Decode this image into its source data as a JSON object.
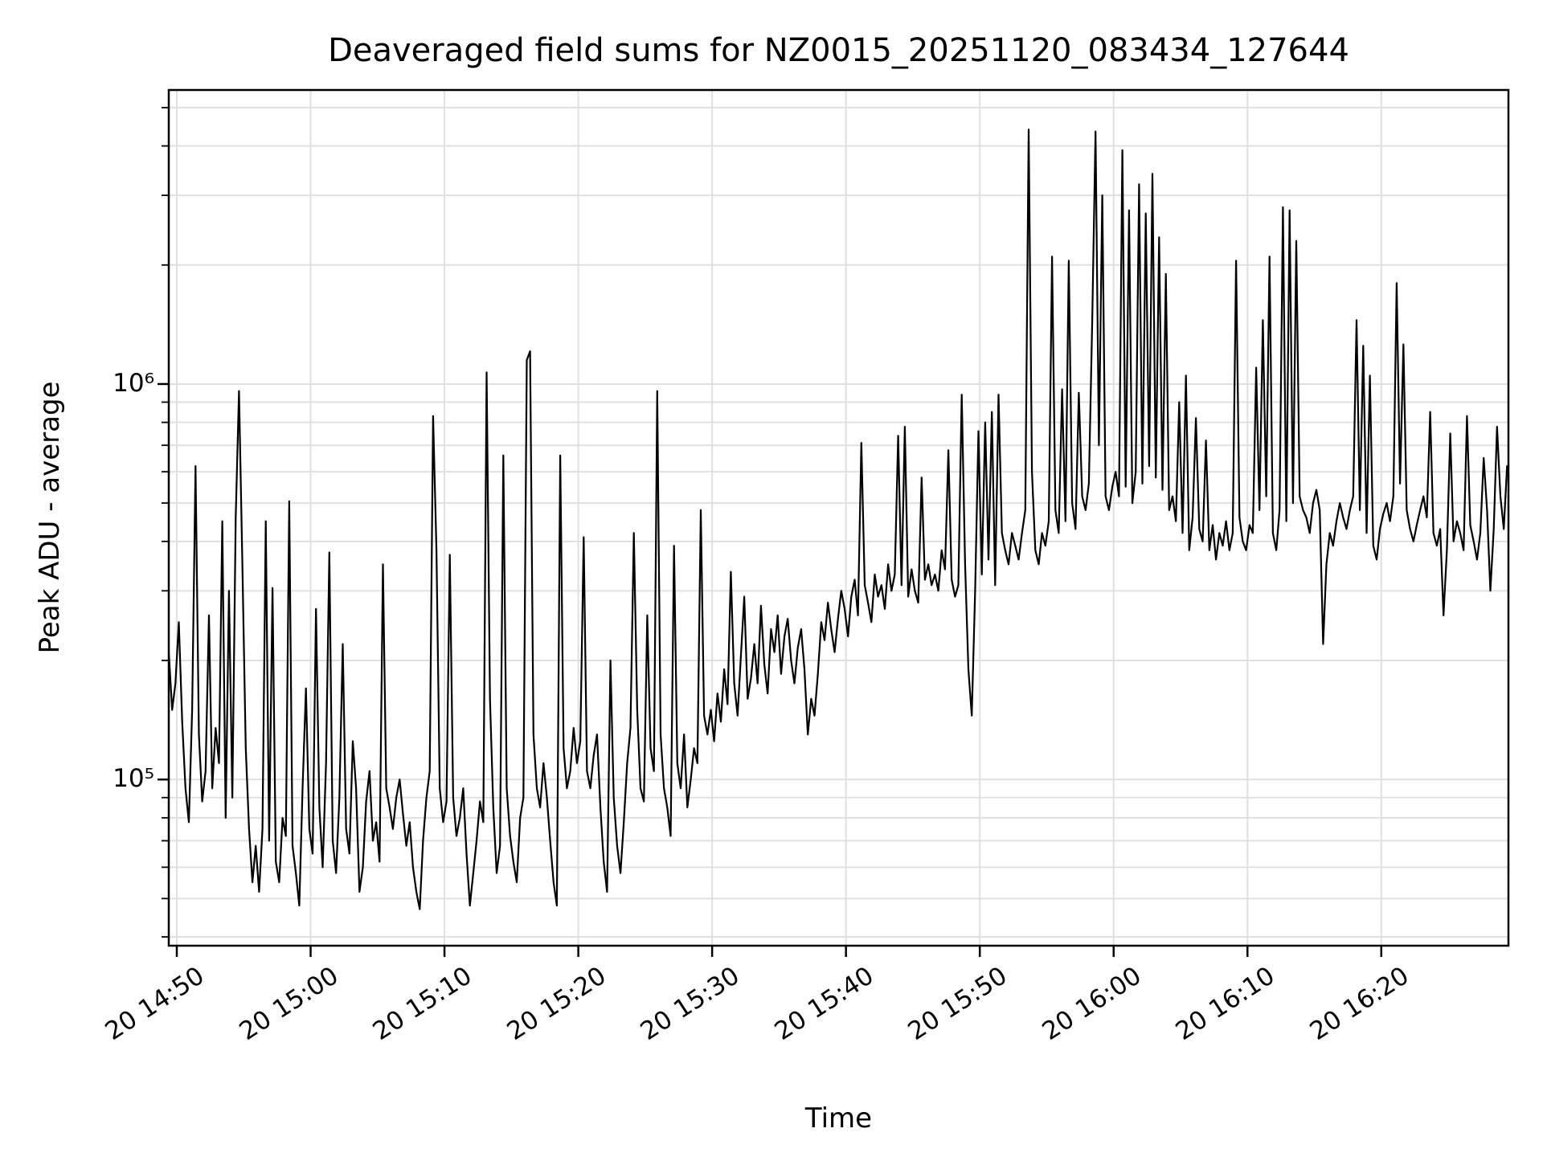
{
  "chart_data": {
    "type": "line",
    "title": "Deaveraged field sums for NZ0015_20251120_083434_127644",
    "xlabel": "Time",
    "ylabel": "Peak ADU - average",
    "yscale": "log",
    "ylim": [
      38000,
      5540000
    ],
    "grid": true,
    "legend": false,
    "x_axis": {
      "unit": "minutes after 2025-11-20 14:49",
      "range": [
        0.4,
        100.5
      ],
      "major_ticks": [
        {
          "t": 1,
          "label": "20 14:50"
        },
        {
          "t": 11,
          "label": "20 15:00"
        },
        {
          "t": 21,
          "label": "20 15:10"
        },
        {
          "t": 31,
          "label": "20 15:20"
        },
        {
          "t": 41,
          "label": "20 15:30"
        },
        {
          "t": 51,
          "label": "20 15:40"
        },
        {
          "t": 61,
          "label": "20 15:50"
        },
        {
          "t": 71,
          "label": "20 16:00"
        },
        {
          "t": 81,
          "label": "20 16:10"
        },
        {
          "t": 91,
          "label": "20 16:20"
        }
      ]
    },
    "y_major_ticks": [
      {
        "value": 100000,
        "label": "10⁵"
      },
      {
        "value": 1000000,
        "label": "10⁶"
      }
    ],
    "series": [
      {
        "name": "Peak ADU - average",
        "color": "#000000",
        "t_start_min": 0.4,
        "t_step_min": 0.25,
        "values": [
          210000,
          150000,
          175000,
          250000,
          140000,
          95000,
          78000,
          150000,
          620000,
          130000,
          88000,
          105000,
          260000,
          95000,
          135000,
          110000,
          450000,
          80000,
          300000,
          90000,
          460000,
          960000,
          350000,
          120000,
          75000,
          55000,
          68000,
          52000,
          75000,
          450000,
          70000,
          305000,
          62000,
          55000,
          80000,
          72000,
          505000,
          68000,
          58000,
          48000,
          95000,
          170000,
          75000,
          65000,
          270000,
          85000,
          60000,
          110000,
          375000,
          70000,
          58000,
          90000,
          220000,
          75000,
          65000,
          125000,
          95000,
          52000,
          60000,
          88000,
          105000,
          70000,
          78000,
          62000,
          350000,
          95000,
          85000,
          75000,
          90000,
          100000,
          82000,
          68000,
          78000,
          60000,
          52000,
          47000,
          70000,
          90000,
          105000,
          830000,
          380000,
          95000,
          78000,
          88000,
          370000,
          90000,
          72000,
          80000,
          95000,
          65000,
          48000,
          58000,
          70000,
          88000,
          78000,
          1070000,
          160000,
          85000,
          58000,
          68000,
          660000,
          95000,
          72000,
          62000,
          55000,
          80000,
          90000,
          1150000,
          1210000,
          130000,
          95000,
          85000,
          110000,
          90000,
          70000,
          55000,
          48000,
          660000,
          120000,
          95000,
          105000,
          135000,
          110000,
          125000,
          410000,
          105000,
          95000,
          115000,
          130000,
          85000,
          62000,
          52000,
          200000,
          90000,
          68000,
          58000,
          78000,
          110000,
          135000,
          420000,
          150000,
          95000,
          88000,
          260000,
          120000,
          105000,
          960000,
          130000,
          95000,
          85000,
          72000,
          390000,
          110000,
          95000,
          130000,
          85000,
          100000,
          120000,
          110000,
          480000,
          145000,
          130000,
          150000,
          125000,
          165000,
          140000,
          190000,
          155000,
          335000,
          175000,
          145000,
          205000,
          290000,
          160000,
          180000,
          220000,
          175000,
          275000,
          195000,
          165000,
          240000,
          210000,
          260000,
          185000,
          230000,
          255000,
          200000,
          175000,
          215000,
          240000,
          190000,
          130000,
          160000,
          145000,
          185000,
          250000,
          225000,
          280000,
          240000,
          210000,
          255000,
          300000,
          270000,
          230000,
          290000,
          320000,
          260000,
          710000,
          310000,
          280000,
          250000,
          330000,
          290000,
          310000,
          270000,
          350000,
          300000,
          330000,
          740000,
          310000,
          780000,
          290000,
          340000,
          300000,
          280000,
          580000,
          320000,
          350000,
          310000,
          330000,
          300000,
          380000,
          340000,
          680000,
          320000,
          290000,
          310000,
          940000,
          350000,
          190000,
          145000,
          300000,
          760000,
          330000,
          800000,
          360000,
          850000,
          310000,
          940000,
          420000,
          380000,
          350000,
          420000,
          390000,
          360000,
          420000,
          480000,
          4400000,
          600000,
          380000,
          350000,
          420000,
          390000,
          450000,
          2100000,
          480000,
          420000,
          970000,
          450000,
          2050000,
          500000,
          430000,
          950000,
          520000,
          480000,
          560000,
          1450000,
          4350000,
          700000,
          3000000,
          520000,
          480000,
          550000,
          600000,
          520000,
          3900000,
          550000,
          2750000,
          500000,
          600000,
          3200000,
          560000,
          2700000,
          620000,
          3400000,
          580000,
          2350000,
          540000,
          1900000,
          480000,
          520000,
          450000,
          900000,
          420000,
          1050000,
          380000,
          460000,
          820000,
          430000,
          400000,
          720000,
          380000,
          440000,
          360000,
          420000,
          390000,
          450000,
          380000,
          420000,
          2050000,
          460000,
          400000,
          380000,
          440000,
          420000,
          1100000,
          480000,
          1450000,
          520000,
          2100000,
          420000,
          380000,
          480000,
          2800000,
          450000,
          2750000,
          500000,
          2300000,
          520000,
          480000,
          460000,
          420000,
          500000,
          540000,
          480000,
          220000,
          350000,
          420000,
          390000,
          450000,
          500000,
          460000,
          430000,
          480000,
          520000,
          1450000,
          480000,
          1250000,
          420000,
          1050000,
          390000,
          360000,
          430000,
          470000,
          500000,
          450000,
          520000,
          1800000,
          560000,
          1260000,
          480000,
          430000,
          400000,
          440000,
          480000,
          520000,
          460000,
          850000,
          420000,
          390000,
          430000,
          260000,
          380000,
          750000,
          400000,
          450000,
          420000,
          380000,
          830000,
          440000,
          400000,
          360000,
          420000,
          650000,
          480000,
          300000,
          430000,
          780000,
          520000,
          430000,
          620000
        ]
      }
    ]
  },
  "styles": {
    "line_color": "#000000",
    "grid_color": "#e0e0e0",
    "spine_color": "#000000",
    "background": "#ffffff"
  }
}
